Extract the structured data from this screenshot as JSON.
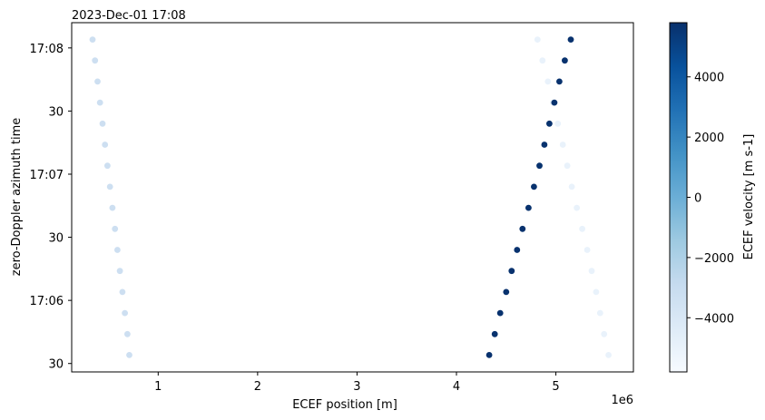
{
  "chart_data": {
    "type": "scatter",
    "corner_label": "2023-Dec-01 17:08",
    "xlabel": "ECEF position [m]",
    "ylabel": "zero-Doppler azimuth time",
    "x_offset_label": "1e6",
    "xlim": [
      0.13,
      5.78
    ],
    "x_scale": 1000000,
    "x_ticks": [
      1,
      2,
      3,
      4,
      5
    ],
    "x_tick_labels": [
      "1",
      "2",
      "3",
      "4",
      "5"
    ],
    "ylim": [
      "17:05:26",
      "17:08:12"
    ],
    "y_ticks": [
      "17:05:30",
      "17:06:00",
      "17:06:30",
      "17:07:00",
      "17:07:30",
      "17:08:00"
    ],
    "y_tick_labels": [
      "30",
      "17:06",
      "30",
      "17:07",
      "30",
      "17:08"
    ],
    "colorbar": {
      "label": "ECEF velocity [m s-1]",
      "cmap": "Blues",
      "vmin": -5800,
      "vmax": 5800,
      "ticks": [
        -4000,
        -2000,
        0,
        2000,
        4000
      ],
      "tick_labels": [
        "−4000",
        "−2000",
        "0",
        "2000",
        "4000"
      ],
      "colors": [
        "#f7fbff",
        "#deebf7",
        "#c6dbef",
        "#9ecae1",
        "#6baed6",
        "#4292c6",
        "#2171b5",
        "#08519c",
        "#08306b"
      ]
    },
    "times": [
      "17:05:34",
      "17:05:44",
      "17:05:54",
      "17:06:04",
      "17:06:14",
      "17:06:24",
      "17:06:34",
      "17:06:44",
      "17:06:54",
      "17:07:04",
      "17:07:14",
      "17:07:24",
      "17:07:34",
      "17:07:44",
      "17:07:54",
      "17:08:04"
    ],
    "series": [
      {
        "values": [
          0.71,
          0.69,
          0.665,
          0.64,
          0.615,
          0.59,
          0.565,
          0.54,
          0.515,
          0.49,
          0.465,
          0.44,
          0.415,
          0.39,
          0.365,
          0.34
        ],
        "color_values": [
          -3300,
          -3300,
          -3300,
          -3300,
          -3300,
          -3300,
          -3300,
          -3300,
          -3300,
          -3300,
          -3300,
          -3300,
          -3300,
          -3300,
          -3300,
          -3300
        ]
      },
      {
        "values": [
          5.53,
          5.485,
          5.445,
          5.405,
          5.36,
          5.315,
          5.265,
          5.21,
          5.16,
          5.115,
          5.07,
          5.02,
          4.97,
          4.92,
          4.865,
          4.815
        ],
        "color_values": [
          -5000,
          -5000,
          -5000,
          -5000,
          -5000,
          -5000,
          -5000,
          -5000,
          -5000,
          -5000,
          -5000,
          -5000,
          -5000,
          -5000,
          -5000,
          -5000
        ]
      },
      {
        "values": [
          4.33,
          4.385,
          4.44,
          4.5,
          4.555,
          4.61,
          4.665,
          4.725,
          4.78,
          4.835,
          4.885,
          4.935,
          4.985,
          5.035,
          5.09,
          5.15
        ],
        "color_values": [
          5700,
          5700,
          5700,
          5700,
          5700,
          5700,
          5700,
          5700,
          5700,
          5700,
          5700,
          5700,
          5700,
          5700,
          5700,
          5700
        ]
      }
    ]
  }
}
